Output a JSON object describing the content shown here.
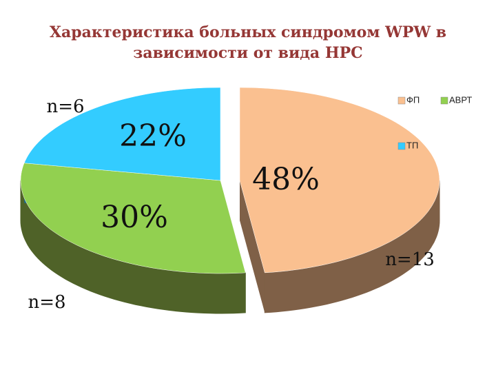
{
  "chart_data": {
    "type": "pie3d",
    "title": "Характеристика больных синдромом WPW в зависимости от вида НРС",
    "categories": [
      "ФП",
      "АВРТ",
      "ТП"
    ],
    "values": [
      48,
      30,
      22
    ],
    "value_labels": [
      "48%",
      "30%",
      "22%"
    ],
    "colors": [
      "#fac090",
      "#92d050",
      "#33ccff"
    ],
    "side_colors": [
      "#7f6047",
      "#4f6228",
      "#1f6a80"
    ],
    "annotations": [
      "n=13",
      "n=8",
      "n=6"
    ],
    "legend": "top-right"
  }
}
